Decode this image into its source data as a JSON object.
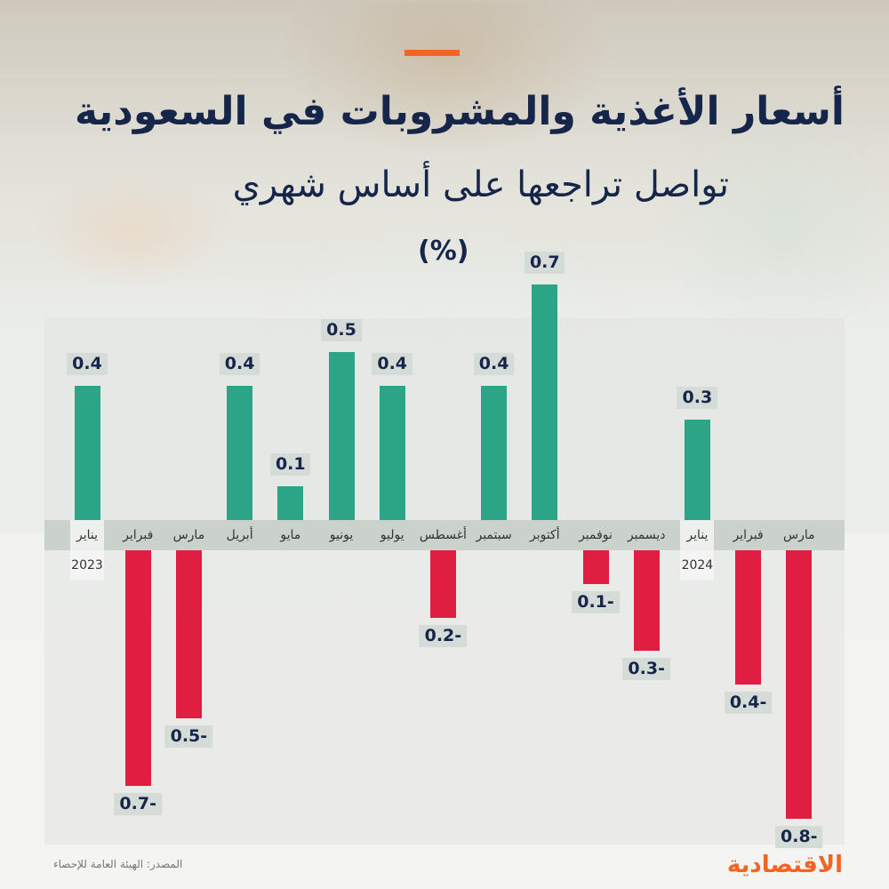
{
  "header": {
    "title": "أسعار الأغذية والمشروبات في السعودية",
    "subtitle": "تواصل تراجعها على أساس شهري",
    "unit": "(%)"
  },
  "colors": {
    "positive": "#2ba585",
    "negative": "#df1e42",
    "accent": "#f26522",
    "text": "#16264a"
  },
  "footer": {
    "source": "المصدر: الهيئة العامة للإحصاء",
    "logo": "الاقتصادية"
  },
  "chart_data": {
    "type": "bar",
    "title": "أسعار الأغذية والمشروبات في السعودية تواصل تراجعها على أساس شهري",
    "ylabel": "(%)",
    "xlabel": "",
    "categories": [
      "يناير 2023",
      "فبراير",
      "مارس",
      "أبريل",
      "مايو",
      "يونيو",
      "يوليو",
      "أغسطس",
      "سبتمبر",
      "أكتوبر",
      "نوفمبر",
      "ديسمبر",
      "يناير 2024",
      "فبراير",
      "مارس"
    ],
    "values": [
      0.4,
      -0.7,
      -0.5,
      0.4,
      0.1,
      0.5,
      0.4,
      -0.2,
      0.4,
      0.7,
      -0.1,
      -0.3,
      0.3,
      -0.4,
      -0.8
    ],
    "grid": false,
    "legend": "none"
  },
  "bars": [
    {
      "month": "يناير",
      "label": "0.4",
      "year": "2023"
    },
    {
      "month": "فبراير",
      "label": "0.7-"
    },
    {
      "month": "مارس",
      "label": "0.5-"
    },
    {
      "month": "أبريل",
      "label": "0.4"
    },
    {
      "month": "مايو",
      "label": "0.1"
    },
    {
      "month": "يونيو",
      "label": "0.5"
    },
    {
      "month": "يوليو",
      "label": "0.4"
    },
    {
      "month": "أغسطس",
      "label": "0.2-"
    },
    {
      "month": "سبتمبر",
      "label": "0.4"
    },
    {
      "month": "أكتوبر",
      "label": "0.7"
    },
    {
      "month": "نوفمبر",
      "label": "0.1-"
    },
    {
      "month": "ديسمبر",
      "label": "0.3-"
    },
    {
      "month": "يناير",
      "label": "0.3",
      "year": "2024"
    },
    {
      "month": "فبراير",
      "label": "0.4-"
    },
    {
      "month": "مارس",
      "label": "0.8-"
    }
  ]
}
